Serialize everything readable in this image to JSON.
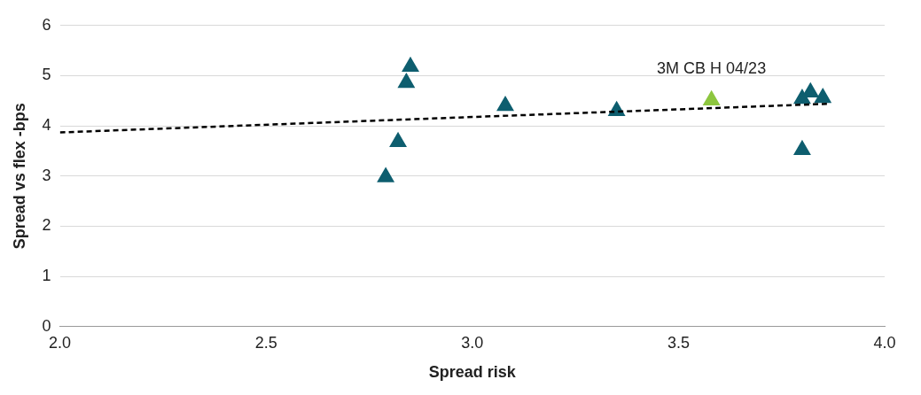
{
  "chart_data": {
    "type": "scatter",
    "xlabel": "Spread risk",
    "ylabel": "Spread vs flex -bps",
    "xlim": [
      2.0,
      4.0
    ],
    "xticks": [
      {
        "value": 2.0,
        "label": "2.0"
      },
      {
        "value": 2.5,
        "label": "2.5"
      },
      {
        "value": 3.0,
        "label": "3.0"
      },
      {
        "value": 3.5,
        "label": "3.5"
      },
      {
        "value": 4.0,
        "label": "4.0"
      }
    ],
    "ylim": [
      0,
      6
    ],
    "yticks": [
      0,
      1,
      2,
      3,
      4,
      5,
      6
    ],
    "grid": "y",
    "legend": false,
    "marker": "triangle",
    "series": [
      {
        "type": "scatter",
        "x": [
          2.79,
          2.82,
          2.84,
          2.85,
          3.08,
          3.35,
          3.58,
          3.8,
          3.82,
          3.85,
          3.8
        ],
        "values": [
          2.98,
          3.68,
          4.86,
          5.18,
          4.4,
          4.3,
          4.51,
          4.54,
          4.67,
          4.56,
          3.52
        ],
        "color": "#0e5e6f",
        "colors": [
          "#0e5e6f",
          "#0e5e6f",
          "#0e5e6f",
          "#0e5e6f",
          "#0e5e6f",
          "#0e5e6f",
          "#8dc63f",
          "#0e5e6f",
          "#0e5e6f",
          "#0e5e6f",
          "#0e5e6f"
        ]
      },
      {
        "type": "line",
        "x": [
          2.0,
          3.86
        ],
        "values": [
          3.87,
          4.44
        ],
        "color": "#000000",
        "line_style": "dashed",
        "marker": "none"
      }
    ],
    "annotations": [
      {
        "text": "3M CB H 04/23",
        "x": 3.58,
        "y": 4.51
      }
    ]
  }
}
